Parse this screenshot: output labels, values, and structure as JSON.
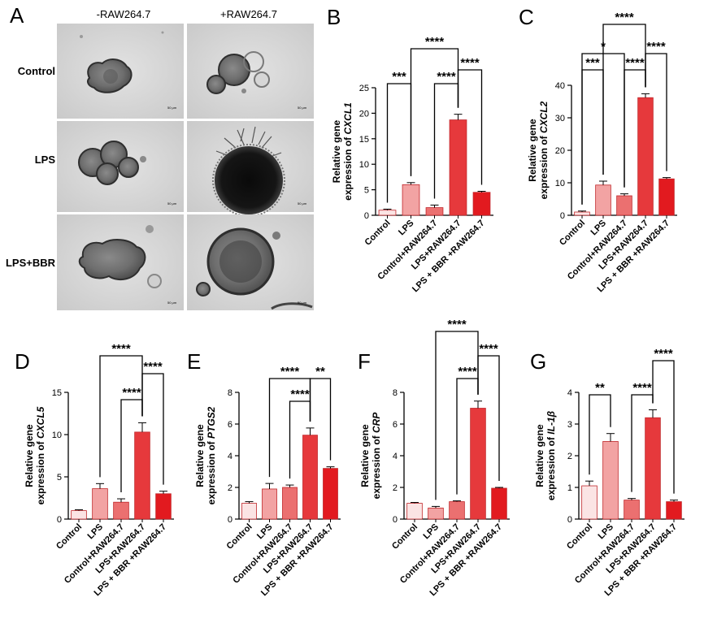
{
  "figure": {
    "panel_a": {
      "letter": "A",
      "columns": [
        "-RAW264.7",
        "+RAW264.7"
      ],
      "rows": [
        "Control",
        "LPS",
        "LPS+BBR"
      ],
      "scale_bar_text": "50 μm"
    }
  },
  "colors": [
    "#fbe4e4",
    "#f2a3a3",
    "#eb7070",
    "#e6393c",
    "#e21a1f"
  ],
  "chart_data": [
    {
      "panel": "B",
      "type": "bar",
      "categories": [
        "Control",
        "LPS",
        "Control+RAW264.7",
        "LPS+RAW264.7",
        "LPS + BBR +RAW264.7"
      ],
      "values": [
        1.0,
        6.0,
        1.5,
        18.7,
        4.5
      ],
      "errors": [
        0.2,
        0.4,
        0.5,
        1.1,
        0.2
      ],
      "ylabel_line1": "Relative gene",
      "ylabel_prefix": "expression of ",
      "ylabel_gene": "CXCL1",
      "ylim": [
        0,
        25
      ],
      "yticks": [
        "0",
        "5",
        "10",
        "15",
        "20",
        "25"
      ],
      "ytick_values": [
        0,
        5,
        10,
        15,
        20,
        25
      ],
      "comparisons": [
        {
          "groups": [
            1,
            3
          ],
          "label": "****"
        },
        {
          "groups": [
            0,
            1
          ],
          "label": "***"
        },
        {
          "groups": [
            2,
            3
          ],
          "label": "****"
        },
        {
          "groups": [
            3,
            4
          ],
          "label": "****"
        }
      ]
    },
    {
      "panel": "C",
      "type": "bar",
      "categories": [
        "Control",
        "LPS",
        "Control+RAW264.7",
        "LPS+RAW264.7",
        "LPS + BBR +RAW264.7"
      ],
      "values": [
        1.0,
        9.3,
        6.0,
        36.2,
        11.2
      ],
      "errors": [
        0.3,
        1.2,
        0.6,
        1.2,
        0.4
      ],
      "ylabel_line1": "Relative gene",
      "ylabel_prefix": "expression of ",
      "ylabel_gene": "CXCL2",
      "ylim": [
        0,
        40
      ],
      "yticks": [
        "0",
        "10",
        "20",
        "30",
        "40"
      ],
      "ytick_values": [
        0,
        10,
        20,
        30,
        40
      ],
      "comparisons": [
        {
          "groups": [
            1,
            3
          ],
          "label": "****"
        },
        {
          "groups": [
            0,
            2
          ],
          "label": "*"
        },
        {
          "groups": [
            0,
            1
          ],
          "label": "***"
        },
        {
          "groups": [
            2,
            3
          ],
          "label": "****"
        },
        {
          "groups": [
            3,
            4
          ],
          "label": "****"
        }
      ]
    },
    {
      "panel": "D",
      "type": "bar",
      "categories": [
        "Control",
        "LPS",
        "Control+RAW264.7",
        "LPS+RAW264.7",
        "LPS + BBR +RAW264.7"
      ],
      "values": [
        1.0,
        3.6,
        2.0,
        10.3,
        3.0
      ],
      "errors": [
        0.1,
        0.6,
        0.4,
        1.1,
        0.3
      ],
      "ylabel_line1": "Relative gene",
      "ylabel_prefix": "expression of ",
      "ylabel_gene": "CXCL5",
      "ylim": [
        0,
        15
      ],
      "yticks": [
        "0",
        "5",
        "10",
        "15"
      ],
      "ytick_values": [
        0,
        5,
        10,
        15
      ],
      "comparisons": [
        {
          "groups": [
            1,
            3
          ],
          "label": "****"
        },
        {
          "groups": [
            2,
            3
          ],
          "label": "****"
        },
        {
          "groups": [
            3,
            4
          ],
          "label": "****"
        }
      ]
    },
    {
      "panel": "E",
      "type": "bar",
      "categories": [
        "Control",
        "LPS",
        "Control+RAW264.7",
        "LPS+RAW264.7",
        "LPS + BBR +RAW264.7"
      ],
      "values": [
        1.0,
        1.9,
        2.0,
        5.3,
        3.2
      ],
      "errors": [
        0.1,
        0.35,
        0.15,
        0.45,
        0.1
      ],
      "ylabel_line1": "Relative gene",
      "ylabel_prefix": "expression of ",
      "ylabel_gene": "PTGS2",
      "ylim": [
        0,
        8
      ],
      "yticks": [
        "0",
        "2",
        "4",
        "6",
        "8"
      ],
      "ytick_values": [
        0,
        2,
        4,
        6,
        8
      ],
      "comparisons": [
        {
          "groups": [
            1,
            3
          ],
          "label": "****"
        },
        {
          "groups": [
            3,
            4
          ],
          "label": "**"
        },
        {
          "groups": [
            2,
            3
          ],
          "label": "****"
        }
      ]
    },
    {
      "panel": "F",
      "type": "bar",
      "categories": [
        "Control",
        "LPS",
        "Control+RAW264.7",
        "LPS+RAW264.7",
        "LPS + BBR +RAW264.7"
      ],
      "values": [
        1.0,
        0.7,
        1.1,
        7.0,
        1.95
      ],
      "errors": [
        0.05,
        0.1,
        0.05,
        0.45,
        0.05
      ],
      "ylabel_line1": "Relative gene",
      "ylabel_prefix": "expression of ",
      "ylabel_gene": "CRP",
      "ylim": [
        0,
        8
      ],
      "yticks": [
        "0",
        "2",
        "4",
        "6",
        "8"
      ],
      "ytick_values": [
        0,
        2,
        4,
        6,
        8
      ],
      "comparisons": [
        {
          "groups": [
            1,
            3
          ],
          "label": "****"
        },
        {
          "groups": [
            3,
            4
          ],
          "label": "****"
        },
        {
          "groups": [
            2,
            3
          ],
          "label": "****"
        }
      ]
    },
    {
      "panel": "G",
      "type": "bar",
      "categories": [
        "Control",
        "LPS",
        "Control+RAW264.7",
        "LPS+RAW264.7",
        "LPS + BBR +RAW264.7"
      ],
      "values": [
        1.05,
        2.45,
        0.6,
        3.2,
        0.55
      ],
      "errors": [
        0.15,
        0.25,
        0.05,
        0.25,
        0.05
      ],
      "ylabel_line1": "Relative gene",
      "ylabel_prefix": "expression of ",
      "ylabel_gene": "IL-1β",
      "ylim": [
        0,
        4
      ],
      "yticks": [
        "0",
        "1",
        "2",
        "3",
        "4"
      ],
      "ytick_values": [
        0,
        1,
        2,
        3,
        4
      ],
      "comparisons": [
        {
          "groups": [
            3,
            4
          ],
          "label": "****"
        },
        {
          "groups": [
            0,
            1
          ],
          "label": "**"
        },
        {
          "groups": [
            2,
            3
          ],
          "label": "****"
        }
      ]
    }
  ]
}
